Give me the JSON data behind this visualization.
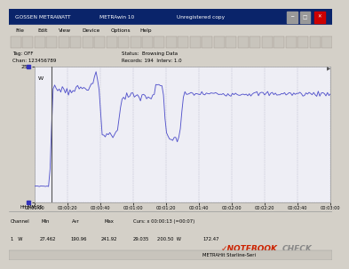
{
  "title_left": "GOSSEN METRAWATT",
  "title_mid": "METRAwin 10",
  "title_right": "Unregistered copy",
  "menu_items": [
    "File",
    "Edit",
    "View",
    "Device",
    "Options",
    "Help"
  ],
  "tag_text": "Tag: OFF",
  "chan_text": "Chan: 123456789",
  "status_text": "Status:  Browsing Data",
  "records_text": "Records: 194  Interv: 1.0",
  "y_top_label": "250",
  "y_bottom_label": "0",
  "y_unit": "W",
  "ylim": [
    0,
    250
  ],
  "xlim": [
    0,
    180
  ],
  "x_ticks": [
    0,
    20,
    40,
    60,
    80,
    100,
    120,
    140,
    160,
    180
  ],
  "x_tick_labels": [
    "00:00:00",
    "00:00:20",
    "00:00:40",
    "00:01:00",
    "00:01:20",
    "00:01:40",
    "00:02:00",
    "00:02:20",
    "00:02:40",
    "00:03:00"
  ],
  "hhmm_label": "HH:MM:SS",
  "line_color": "#5555cc",
  "bg_color": "#eeeef5",
  "grid_color": "#bbbbcc",
  "panel_bg": "#d4d0c8",
  "titlebar_bg": "#0a246a",
  "titlebar_fg": "#ffffff",
  "min_val": "27.462",
  "avg_val": "190.96",
  "max_val": "241.92",
  "curs_label": "Curs: x 00:00:13 (=00:07)",
  "curs_val": "29.035",
  "curs_w": "200.50  W",
  "last_val": "172.47",
  "col_headers": [
    "Channel",
    "Min",
    "Avr",
    "Max"
  ],
  "row1": [
    "1   W",
    "27.462",
    "190.96",
    "241.92"
  ],
  "bottom_status": "METRAHit Starline-Seri",
  "nb_check_red": "#cc2200",
  "nb_check_gray": "#888888",
  "cursor_line_x": 10,
  "stress_start": 10,
  "num_points": 194
}
